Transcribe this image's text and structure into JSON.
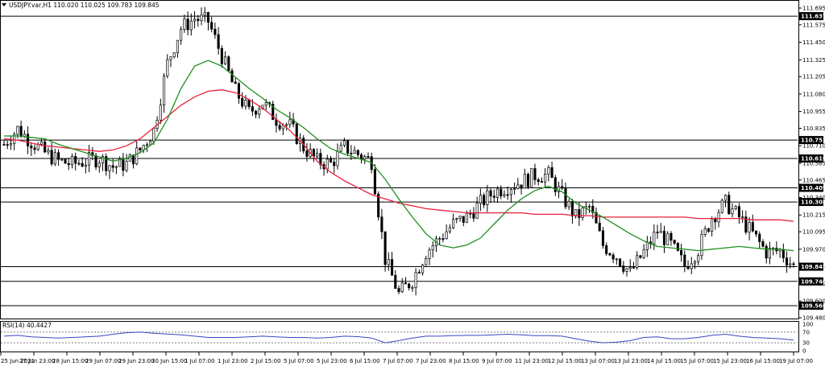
{
  "header": {
    "symbol_line": "USDJPY.var,H1  110.020 110.025 109.783 109.845",
    "menu_icon": "triangle-down-icon"
  },
  "rsi": {
    "label": "RSI(14) 40.4427",
    "scale_labels": [
      "100",
      "70",
      "30",
      "0"
    ],
    "levels": [
      70,
      30
    ]
  },
  "price_axis": {
    "ticks": [
      "111.695",
      "111.575",
      "111.450",
      "111.325",
      "111.205",
      "111.080",
      "110.955",
      "110.835",
      "110.710",
      "110.585",
      "110.465",
      "110.340",
      "110.215",
      "110.095",
      "109.970",
      "109.845",
      "109.725",
      "109.600",
      "109.480"
    ],
    "levels": [
      {
        "label": "111.637",
        "value": 111.637
      },
      {
        "label": "110.751",
        "value": 110.751
      },
      {
        "label": "110.619",
        "value": 110.619
      },
      {
        "label": "110.409",
        "value": 110.409
      },
      {
        "label": "110.308",
        "value": 110.308
      },
      {
        "label": "109.845",
        "value": 109.845
      },
      {
        "label": "109.740",
        "value": 109.74
      },
      {
        "label": "109.566",
        "value": 109.566
      }
    ]
  },
  "time_axis": {
    "labels": [
      "25 Jun 2021",
      "27 Jun 23:00",
      "28 Jun 15:00",
      "29 Jun 07:00",
      "29 Jun 23:00",
      "30 Jun 15:00",
      "1 Jul 07:00",
      "1 Jul 23:00",
      "2 Jul 15:00",
      "5 Jul 07:00",
      "5 Jul 23:00",
      "6 Jul 15:00",
      "7 Jul 07:00",
      "7 Jul 23:00",
      "8 Jul 15:00",
      "9 Jul 07:00",
      "11 Jul 23:00",
      "12 Jul 15:00",
      "13 Jul 07:00",
      "13 Jul 23:00",
      "14 Jul 15:00",
      "15 Jul 07:00",
      "15 Jul 23:00",
      "16 Jul 15:00",
      "19 Jul 07:00"
    ]
  },
  "colors": {
    "background": "#ffffff",
    "candle": "#000000",
    "ma_fast": "#1f8f1f",
    "ma_slow": "#e8213c",
    "rsi_line": "#3a44c4",
    "level_line": "#000000",
    "tag_bg": "#000000"
  },
  "chart_data": {
    "type": "line",
    "series": [
      {
        "values": [
          110.72,
          110.83,
          110.74,
          110.66,
          110.6,
          110.58,
          110.6,
          110.62,
          110.56,
          110.58,
          110.68,
          110.82,
          111.3,
          111.55,
          111.62,
          111.6,
          111.35,
          111.1,
          110.95,
          111.02,
          110.9,
          110.85,
          110.7,
          110.6,
          110.58,
          110.7,
          110.65,
          110.6,
          109.9,
          109.65,
          109.75,
          109.95,
          110.05,
          110.15,
          110.2,
          110.3,
          110.38,
          110.42,
          110.45,
          110.5,
          110.5,
          110.35,
          110.2,
          110.27,
          110.0,
          109.92,
          109.8,
          109.95,
          110.1,
          110.0,
          109.85,
          109.97,
          110.2,
          110.3,
          110.2,
          110.08,
          109.95,
          109.96,
          109.85
        ]
      },
      {
        "values": [
          110.78,
          110.78,
          110.77,
          110.76,
          110.72,
          110.69,
          110.66,
          110.63,
          110.6,
          110.62,
          110.66,
          110.73,
          110.9,
          111.12,
          111.28,
          111.32,
          111.28,
          111.2,
          111.12,
          111.05,
          110.97,
          110.91,
          110.84,
          110.76,
          110.69,
          110.65,
          110.62,
          110.59,
          110.47,
          110.33,
          110.2,
          110.08,
          110.0,
          109.98,
          110.0,
          110.05,
          110.15,
          110.25,
          110.33,
          110.39,
          110.42,
          110.38,
          110.3,
          110.25,
          110.2,
          110.14,
          110.08,
          110.03,
          109.99,
          109.98,
          109.97,
          109.96,
          109.97,
          109.98,
          109.99,
          109.98,
          109.97,
          109.97,
          109.96
        ]
      },
      {
        "values": [
          110.76,
          110.75,
          110.73,
          110.71,
          110.7,
          110.69,
          110.68,
          110.67,
          110.68,
          110.71,
          110.76,
          110.84,
          110.92,
          111.0,
          111.06,
          111.1,
          111.11,
          111.09,
          111.04,
          110.98,
          110.9,
          110.82,
          110.72,
          110.6,
          110.52,
          110.46,
          110.41,
          110.36,
          110.33,
          110.3,
          110.28,
          110.26,
          110.25,
          110.24,
          110.23,
          110.23,
          110.23,
          110.23,
          110.23,
          110.22,
          110.22,
          110.22,
          110.21,
          110.21,
          110.2,
          110.2,
          110.2,
          110.2,
          110.2,
          110.2,
          110.2,
          110.19,
          110.19,
          110.19,
          110.19,
          110.18,
          110.18,
          110.18,
          110.17
        ]
      },
      {
        "values": [
          55,
          58,
          52,
          50,
          48,
          50,
          52,
          55,
          62,
          68,
          70,
          66,
          63,
          60,
          55,
          50,
          50,
          50,
          52,
          55,
          52,
          50,
          50,
          48,
          50,
          55,
          53,
          48,
          30,
          38,
          48,
          55,
          55,
          57,
          58,
          58,
          60,
          62,
          60,
          57,
          57,
          55,
          45,
          36,
          30,
          32,
          38,
          50,
          52,
          45,
          45,
          50,
          58,
          62,
          55,
          50,
          48,
          45,
          40
        ]
      }
    ]
  }
}
